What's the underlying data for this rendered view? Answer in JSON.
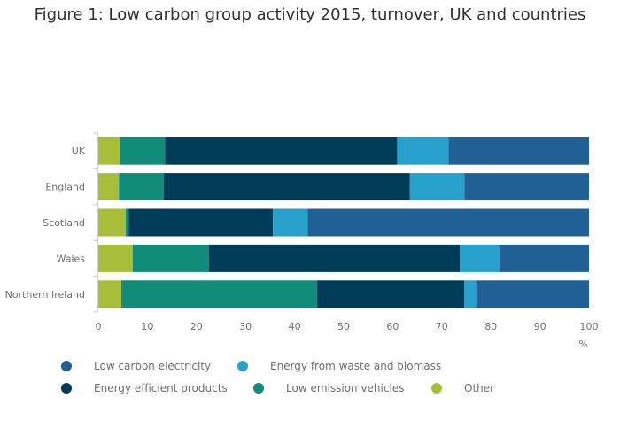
{
  "chart_data": {
    "type": "bar",
    "orientation": "horizontal",
    "stacked": true,
    "title": "Figure 1: Low carbon group activity 2015, turnover, UK and countries",
    "xlabel": "%",
    "ylabel": "",
    "xlim": [
      0,
      100
    ],
    "xticks": [
      "0",
      "10",
      "20",
      "30",
      "40",
      "50",
      "60",
      "70",
      "80",
      "90",
      "100"
    ],
    "grid": false,
    "legend_position": "bottom",
    "categories": [
      "UK",
      "England",
      "Scotland",
      "Wales",
      "Northern Ireland"
    ],
    "series": [
      {
        "name": "Other",
        "color": "#a8bd3a",
        "values": [
          4.4,
          4.2,
          5.6,
          7.0,
          4.7
        ]
      },
      {
        "name": "Low emission vehicles",
        "color": "#118c7b",
        "values": [
          9.2,
          9.1,
          0.6,
          15.5,
          39.9
        ]
      },
      {
        "name": "Energy efficient products",
        "color": "#003c57",
        "values": [
          47.3,
          50.2,
          29.4,
          51.2,
          30.0
        ]
      },
      {
        "name": "Energy from waste and biomass",
        "color": "#27a0cc",
        "values": [
          10.5,
          11.1,
          7.1,
          8.0,
          2.4
        ]
      },
      {
        "name": "Low carbon electricity",
        "color": "#206095",
        "values": [
          28.6,
          25.4,
          57.3,
          18.3,
          23.0
        ]
      }
    ],
    "legend": [
      {
        "name": "Low carbon electricity",
        "color": "#206095"
      },
      {
        "name": "Energy from waste and biomass",
        "color": "#27a0cc"
      },
      {
        "name": "Energy efficient products",
        "color": "#003c57"
      },
      {
        "name": "Low emission vehicles",
        "color": "#118c7b"
      },
      {
        "name": "Other",
        "color": "#a8bd3a"
      }
    ]
  }
}
